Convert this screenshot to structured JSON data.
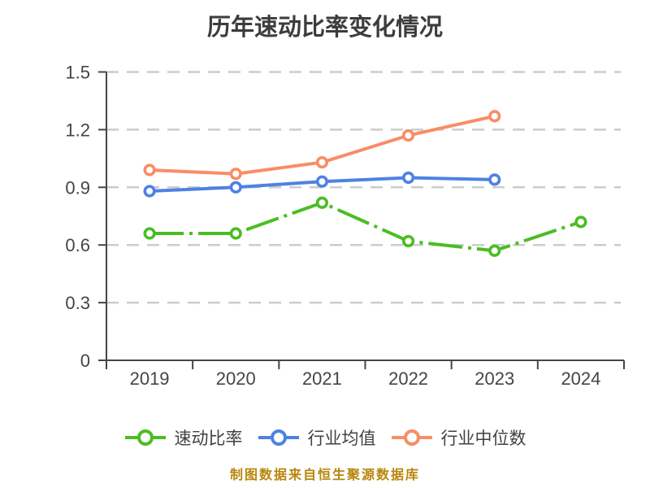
{
  "title": "历年速动比率变化情况",
  "caption": "制图数据来自恒生聚源数据库",
  "colors": {
    "quick_ratio_green": "#4bbd24",
    "industry_avg_blue": "#4e82e2",
    "industry_median_orange": "#f98d66",
    "axis": "#454545",
    "grid": "#cccccc",
    "tick_label": "#454545",
    "title_text": "#3c3c3c",
    "legend_text": "#414141",
    "caption_text": "#b8860b",
    "marker_fill": "#ffffff",
    "background": "#ffffff"
  },
  "icons": {
    "legend_marker": "circle-line-marker-icon"
  },
  "chart_data": {
    "type": "line",
    "title": "历年速动比率变化情况",
    "categories": [
      "2019",
      "2020",
      "2021",
      "2022",
      "2023",
      "2024"
    ],
    "series": [
      {
        "name": "速动比率",
        "color": "#4bbd24",
        "line_style": "dashdot",
        "marker": "circle-white-fill",
        "values": [
          0.66,
          0.66,
          0.82,
          0.62,
          0.57,
          0.72
        ]
      },
      {
        "name": "行业均值",
        "color": "#4e82e2",
        "line_style": "solid",
        "marker": "circle-white-fill",
        "values": [
          0.88,
          0.9,
          0.93,
          0.95,
          0.94,
          null
        ]
      },
      {
        "name": "行业中位数",
        "color": "#f98d66",
        "line_style": "solid",
        "marker": "circle-white-fill",
        "values": [
          0.99,
          0.97,
          1.03,
          1.17,
          1.27,
          null
        ]
      }
    ],
    "xlabel": "",
    "ylabel": "",
    "ylim": [
      0,
      1.5
    ],
    "yticks": [
      0,
      0.3,
      0.6,
      0.9,
      1.2,
      1.5
    ],
    "ytick_labels": [
      "0",
      "0.3",
      "0.6",
      "0.9",
      "1.2",
      "1.5"
    ],
    "grid": "horizontal-dashed",
    "legend_position": "bottom",
    "caption": "制图数据来自恒生聚源数据库"
  }
}
